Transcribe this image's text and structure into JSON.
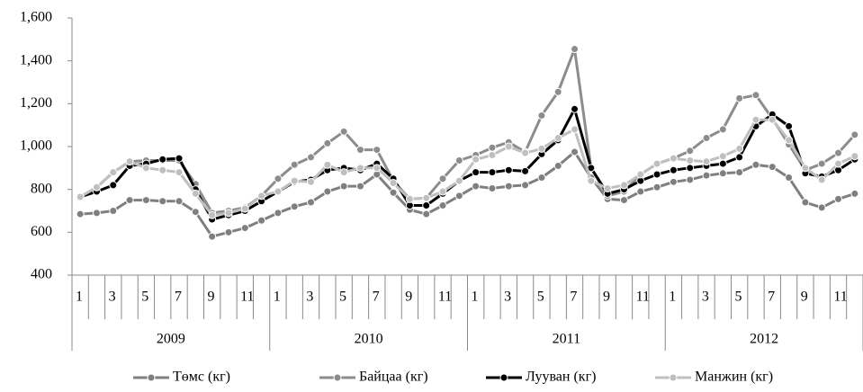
{
  "chart_data": {
    "type": "line",
    "categories": [
      "1",
      null,
      "3",
      null,
      "5",
      null,
      "7",
      null,
      "9",
      null,
      "11",
      null,
      "1",
      null,
      "3",
      null,
      "5",
      null,
      "7",
      null,
      "9",
      null,
      "11",
      null,
      "1",
      null,
      "3",
      null,
      "5",
      null,
      "7",
      null,
      "9",
      null,
      "11",
      null,
      "1",
      null,
      "3",
      null,
      "5",
      null,
      "7",
      null,
      "9",
      null,
      "11",
      null
    ],
    "groups": [
      "2009",
      "2010",
      "2011",
      "2012"
    ],
    "series": [
      {
        "name": "Төмс (кг)",
        "color": "#7f7f7f",
        "values": [
          685,
          690,
          700,
          750,
          750,
          745,
          745,
          695,
          580,
          600,
          620,
          655,
          690,
          720,
          740,
          790,
          815,
          815,
          870,
          785,
          705,
          685,
          725,
          770,
          815,
          805,
          815,
          820,
          855,
          910,
          975,
          855,
          755,
          750,
          790,
          810,
          835,
          845,
          865,
          875,
          880,
          915,
          905,
          855,
          740,
          715,
          755,
          780
        ]
      },
      {
        "name": "Байцаа (кг)",
        "color": "#8c8c8c",
        "values": [
          765,
          810,
          880,
          930,
          935,
          935,
          935,
          825,
          690,
          700,
          715,
          770,
          850,
          915,
          950,
          1015,
          1070,
          985,
          985,
          840,
          755,
          760,
          850,
          935,
          960,
          995,
          1020,
          975,
          1145,
          1255,
          1455,
          900,
          770,
          790,
          870,
          920,
          945,
          980,
          1040,
          1080,
          1225,
          1240,
          1130,
          1010,
          890,
          920,
          970,
          1055
        ]
      },
      {
        "name": "Лууван (кг)",
        "color": "#000000",
        "values": [
          765,
          790,
          820,
          910,
          920,
          940,
          945,
          800,
          660,
          680,
          700,
          745,
          790,
          835,
          845,
          890,
          900,
          890,
          920,
          850,
          725,
          725,
          780,
          840,
          880,
          880,
          890,
          885,
          965,
          1030,
          1175,
          900,
          780,
          800,
          840,
          870,
          890,
          900,
          910,
          920,
          950,
          1095,
          1150,
          1095,
          875,
          860,
          890,
          940
        ]
      },
      {
        "name": "Манжин (кг)",
        "color": "#bfbfbf",
        "values": [
          765,
          810,
          880,
          930,
          900,
          890,
          880,
          780,
          680,
          690,
          710,
          770,
          790,
          840,
          835,
          915,
          880,
          900,
          900,
          830,
          755,
          760,
          790,
          840,
          940,
          960,
          1000,
          970,
          990,
          1040,
          1080,
          840,
          805,
          820,
          870,
          920,
          945,
          935,
          930,
          955,
          990,
          1125,
          1125,
          1030,
          900,
          845,
          920,
          955
        ]
      }
    ],
    "ylim": [
      400,
      1600
    ],
    "yticks": [
      400,
      600,
      800,
      {
        "value": 1000,
        "label": "1,000"
      },
      {
        "value": 1200,
        "label": "1,200"
      },
      {
        "value": 1400,
        "label": "1,400"
      },
      {
        "value": 1600,
        "label": "1,600"
      }
    ],
    "legend": "bottom"
  }
}
